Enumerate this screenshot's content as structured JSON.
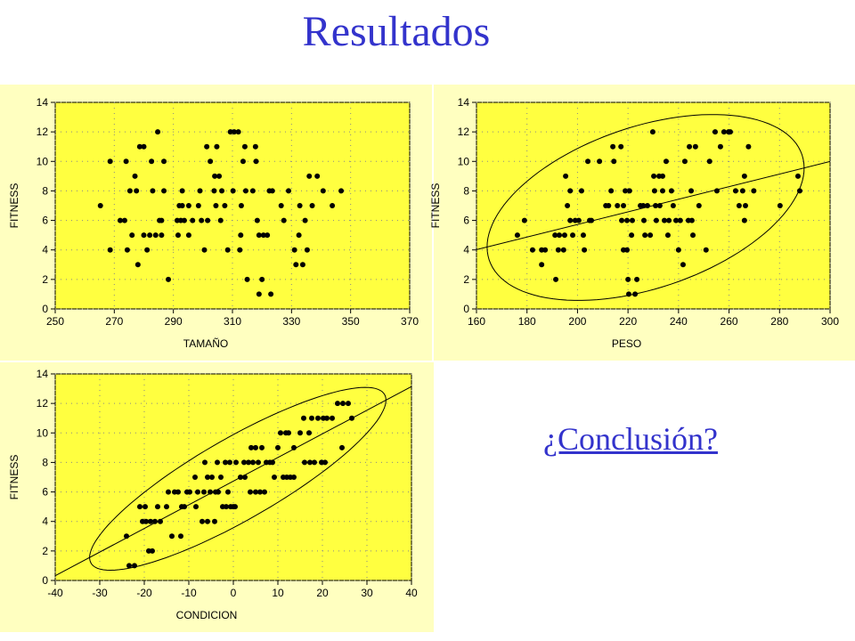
{
  "title": "Resultados",
  "link": "¿Conclusión?",
  "chart_data": [
    {
      "type": "scatter",
      "x_label": "TAMAÑO",
      "y_label": "FITNESS",
      "color": "#000000",
      "grid": true,
      "regression": false,
      "ellipse": false,
      "xlim": [
        250,
        370
      ],
      "ylim": [
        0,
        14
      ],
      "xticks": [
        250,
        270,
        290,
        310,
        330,
        350,
        370
      ],
      "yticks": [
        0,
        2,
        4,
        6,
        8,
        10,
        12,
        14
      ],
      "x": [
        265.3,
        268.6,
        268.6,
        272,
        273.5,
        274,
        274.4,
        275.3,
        276,
        277,
        277.5,
        278,
        278.6,
        280,
        280,
        281.1,
        282,
        282.6,
        283,
        284,
        284.7,
        285.3,
        286,
        286,
        286.8,
        286.8,
        288.3,
        291.3,
        291.6,
        292,
        292.5,
        293,
        293,
        293.7,
        295.2,
        295.2,
        296.5,
        298.5,
        299,
        299.5,
        300.5,
        301.3,
        301.6,
        302.5,
        303.8,
        304,
        304.4,
        304.7,
        305.5,
        306,
        306.4,
        307.4,
        308.4,
        309.3,
        310.2,
        310.6,
        312,
        313,
        312.8,
        312.5,
        313.6,
        314.2,
        314.5,
        315,
        316.9,
        317.8,
        318,
        318.4,
        319,
        319,
        320,
        320.5,
        321.8,
        322.5,
        323,
        323.5,
        326.5,
        327.4,
        329,
        331,
        331.5,
        332.5,
        332.8,
        333.8,
        334.6,
        335.3,
        336,
        337,
        338.7,
        340.7,
        343.8,
        346.8
      ],
      "y": [
        7,
        10,
        4,
        6,
        6,
        10,
        4,
        8,
        5,
        9,
        8,
        3,
        11,
        5,
        11,
        4,
        5,
        10,
        8,
        5,
        12,
        6,
        5,
        6,
        10,
        8,
        2,
        6,
        5,
        7,
        6,
        8,
        7,
        6,
        7,
        5,
        6,
        7,
        8,
        6,
        4,
        11,
        6,
        10,
        8,
        9,
        7,
        11,
        9,
        6,
        8,
        7,
        4,
        12,
        8,
        12,
        12,
        7,
        5,
        4,
        10,
        11,
        8,
        2,
        8,
        11,
        10,
        6,
        1,
        5,
        2,
        5,
        5,
        8,
        1,
        8,
        7,
        6,
        8,
        4,
        3,
        5,
        7,
        3,
        6,
        4,
        9,
        7,
        9,
        8,
        7,
        8
      ]
    },
    {
      "type": "scatter",
      "x_label": "PESO",
      "y_label": "FITNESS",
      "color": "#000000",
      "grid": true,
      "regression": true,
      "ellipse": true,
      "xlim": [
        160,
        300
      ],
      "ylim": [
        0,
        14
      ],
      "xticks": [
        160,
        180,
        200,
        220,
        240,
        260,
        280,
        300
      ],
      "yticks": [
        0,
        2,
        4,
        6,
        8,
        10,
        12,
        14
      ],
      "x": [
        176.2,
        179,
        182.2,
        185.8,
        185.8,
        187.2,
        191.1,
        191.4,
        192.4,
        192.8,
        194.5,
        194.9,
        195.3,
        196,
        197.1,
        197.1,
        198.1,
        199.1,
        200.5,
        201.6,
        202.3,
        202.7,
        204.1,
        204.8,
        205.5,
        208.7,
        211.2,
        212.3,
        213.3,
        214,
        214.4,
        215.8,
        217.2,
        217.5,
        218.2,
        218.2,
        218.9,
        219.6,
        219.6,
        220,
        220.3,
        220.6,
        221.4,
        221.7,
        222.8,
        223.5,
        224.9,
        226,
        226.3,
        226.7,
        227.7,
        228.8,
        229.8,
        230.2,
        230.5,
        230.9,
        231.2,
        232.3,
        232.6,
        233.7,
        233.7,
        234.4,
        235.1,
        235.8,
        236.2,
        237.2,
        237.9,
        239,
        240,
        240.7,
        241.8,
        242.5,
        243.9,
        244.3,
        245,
        245.3,
        245.7,
        246.7,
        248.1,
        250.9,
        252.3,
        254.5,
        255.2,
        256.6,
        258,
        259.8,
        260.5,
        262.6,
        264,
        265.4,
        266.1,
        266.1,
        266.5,
        267.7,
        269.8,
        280.2,
        287.3,
        288
      ],
      "y": [
        5,
        6,
        4,
        4,
        3,
        4,
        5,
        2,
        4,
        5,
        4,
        5,
        9,
        7,
        8,
        6,
        5,
        6,
        6,
        8,
        5,
        4,
        10,
        6,
        6,
        10,
        7,
        7,
        8,
        11,
        10,
        7,
        11,
        6,
        4,
        7,
        8,
        4,
        6,
        2,
        1,
        8,
        5,
        6,
        1,
        2,
        7,
        7,
        6,
        5,
        7,
        5,
        12,
        9,
        8,
        7,
        6,
        9,
        7,
        9,
        8,
        6,
        10,
        5,
        6,
        8,
        7,
        6,
        4,
        6,
        3,
        10,
        6,
        11,
        8,
        6,
        5,
        11,
        7,
        4,
        10,
        12,
        8,
        11,
        12,
        12,
        12,
        8,
        7,
        8,
        9,
        6,
        7,
        11,
        8,
        7,
        9,
        8
      ]
    },
    {
      "type": "scatter",
      "x_label": "CONDICION",
      "y_label": "FITNESS",
      "color": "#000000",
      "grid": true,
      "regression": true,
      "ellipse": true,
      "xlim": [
        -40,
        40
      ],
      "ylim": [
        0,
        14
      ],
      "xticks": [
        -40,
        -30,
        -20,
        -10,
        0,
        10,
        20,
        30,
        40
      ],
      "yticks": [
        0,
        2,
        4,
        6,
        8,
        10,
        12,
        14
      ],
      "x": [
        -24,
        -23.4,
        -22.2,
        -21,
        -20.4,
        -19.8,
        -19.6,
        -19,
        -18.6,
        -18.2,
        -17.6,
        -17,
        -16.4,
        -15,
        -14.6,
        -13.8,
        -13.2,
        -12.4,
        -11.8,
        -11.6,
        -11,
        -10.4,
        -9.8,
        -8.6,
        -8.4,
        -8,
        -7,
        -6.6,
        -6.4,
        -5.8,
        -5.8,
        -5.2,
        -4.8,
        -4.2,
        -4,
        -3.6,
        -3.4,
        -2.8,
        -2.4,
        -1.8,
        -1.6,
        -1.2,
        -0.8,
        -0.6,
        0,
        0.4,
        0.6,
        1.6,
        2.4,
        2.6,
        3.4,
        3.8,
        4,
        4.4,
        5,
        5,
        5.6,
        6,
        6.4,
        7,
        7.4,
        8.2,
        8.8,
        9.2,
        10,
        10.6,
        11.2,
        11.8,
        12,
        12.4,
        12.8,
        13.6,
        13.6,
        15,
        15.8,
        16,
        17,
        17.2,
        17.6,
        18.2,
        19,
        19.8,
        20.2,
        20.6,
        21,
        22.2,
        23.4,
        24.4,
        24.6,
        25.8,
        26.6
      ],
      "y": [
        3,
        1,
        1,
        5,
        4,
        5,
        4,
        2,
        4,
        2,
        4,
        5,
        4,
        5,
        6,
        3,
        6,
        6,
        3,
        5,
        5,
        6,
        6,
        7,
        5,
        6,
        4,
        6,
        8,
        4,
        7,
        6,
        7,
        4,
        6,
        8,
        6,
        7,
        5,
        8,
        5,
        6,
        8,
        5,
        5,
        5,
        8,
        7,
        8,
        7,
        8,
        6,
        9,
        8,
        9,
        6,
        8,
        6,
        9,
        6,
        8,
        8,
        8,
        7,
        9,
        10,
        7,
        10,
        7,
        10,
        7,
        7,
        9,
        10,
        11,
        8,
        10,
        8,
        11,
        8,
        11,
        8,
        11,
        8,
        11,
        11,
        12,
        9,
        12,
        12,
        11
      ]
    }
  ]
}
